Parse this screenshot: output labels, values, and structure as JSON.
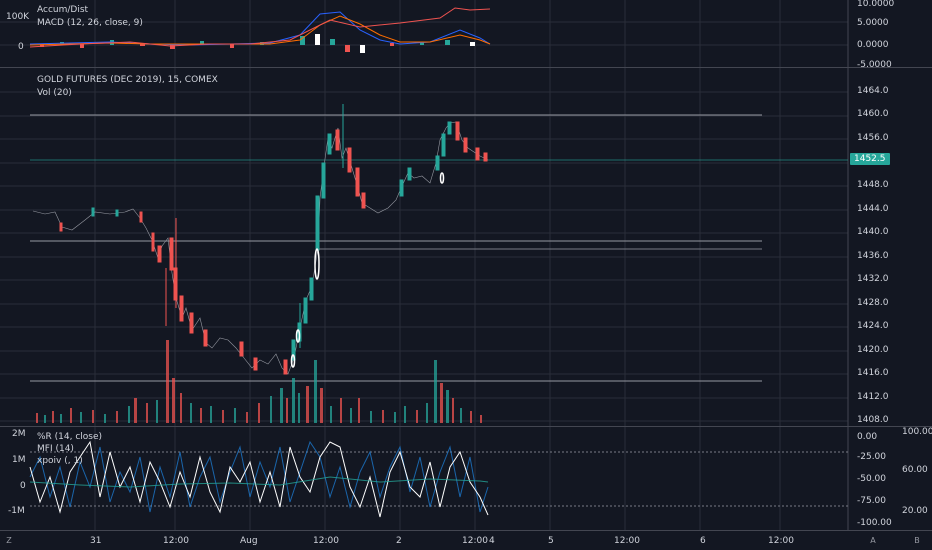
{
  "top_pane": {
    "title1": "Accum/Dist",
    "title2": "MACD (12, 26, close, 9)",
    "left_labels": [
      "100K",
      "0"
    ],
    "right_labels": [
      "10.0000",
      "5.0000",
      "0.0000",
      "-5.0000"
    ]
  },
  "main_pane": {
    "symbol": "GOLD FUTURES (DEC 2019), 15, COMEX",
    "indicator": "Vol (20)",
    "price_labels": [
      "1464.0",
      "1460.0",
      "1456.0",
      "1452.0",
      "1448.0",
      "1444.0",
      "1440.0",
      "1436.0",
      "1432.0",
      "1428.0",
      "1424.0",
      "1420.0",
      "1416.0",
      "1412.0",
      "1408.0"
    ],
    "current_price": "1452.5",
    "current_price_color": "#26a69a"
  },
  "bottom_pane": {
    "title1": "%R (14, close)",
    "title2": "MFI (14)",
    "title3": "xpoiv (, 1)",
    "left_labels": [
      "2M",
      "1M",
      "0",
      "-1M"
    ],
    "right_labels": [
      "0.00",
      "-25.00",
      "-50.00",
      "-75.00",
      "-100.00"
    ],
    "far_right_labels": [
      "100.00",
      "60.00",
      "20.00"
    ]
  },
  "time_axis": {
    "labels": [
      "31",
      "12:00",
      "Aug",
      "12:00",
      "2",
      "12:00",
      "4",
      "5",
      "12:00",
      "6",
      "12:00"
    ]
  },
  "corner_buttons": {
    "bottom_left": "Z",
    "bottom_right_a": "A",
    "bottom_right_b": "B"
  },
  "colors": {
    "up": "#26a69a",
    "down": "#ef5350",
    "background": "#131722",
    "grid": "#2a2e39"
  }
}
